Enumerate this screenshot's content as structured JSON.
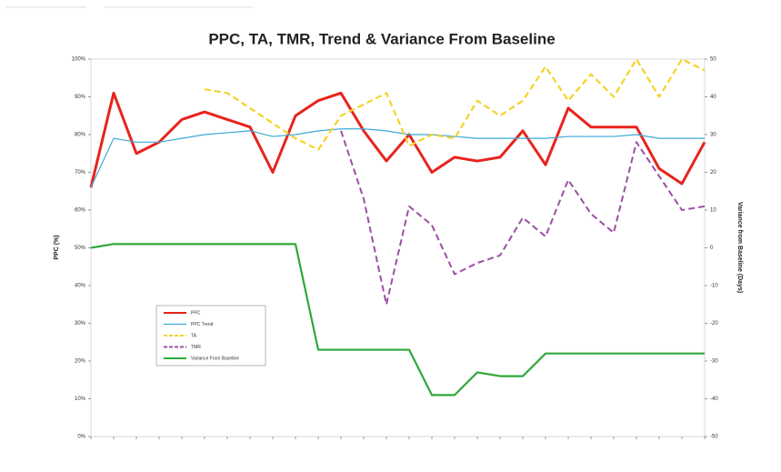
{
  "chart_data": {
    "type": "line",
    "title": "PPC, TA, TMR, Trend & Variance From Baseline",
    "y_label": "PPC (%)",
    "y2_label": "Variance from Baseline (Days)",
    "categories": [
      null,
      null,
      null,
      null,
      null,
      null,
      null,
      null,
      null,
      null,
      null,
      null,
      null,
      null,
      null,
      null,
      null,
      null,
      null,
      null,
      null,
      null,
      null,
      null,
      null,
      null,
      null,
      null
    ],
    "ylim": [
      0,
      100
    ],
    "yticks": [
      {
        "value": 0,
        "label": "0%"
      },
      {
        "value": 10,
        "label": "10%"
      },
      {
        "value": 20,
        "label": "20%"
      },
      {
        "value": 30,
        "label": "30%"
      },
      {
        "value": 40,
        "label": "40%"
      },
      {
        "value": 50,
        "label": "50%"
      },
      {
        "value": 60,
        "label": "60%"
      },
      {
        "value": 70,
        "label": "70%"
      },
      {
        "value": 80,
        "label": "80%"
      },
      {
        "value": 90,
        "label": "90%"
      },
      {
        "value": 100,
        "label": "100%"
      }
    ],
    "y2lim": [
      -50,
      50
    ],
    "y2ticks": [
      -50,
      -40,
      -30,
      -20,
      -10,
      0,
      10,
      20,
      30,
      40,
      50
    ],
    "series": [
      {
        "name": "PPC",
        "color": "#e8231d",
        "width": 3,
        "dash": false,
        "values": [
          66,
          91,
          75,
          78,
          84,
          86,
          84,
          82,
          70,
          85,
          89,
          91,
          81,
          73,
          80,
          70,
          74,
          73,
          74,
          81,
          72,
          87,
          82,
          82,
          82,
          71,
          67,
          78
        ]
      },
      {
        "name": "PPC Trend",
        "color": "#3fa9d6",
        "width": 1.2,
        "dash": false,
        "values": [
          66,
          79,
          78,
          78,
          79,
          80,
          80.5,
          81,
          79.5,
          80,
          81,
          81.5,
          81.5,
          81,
          80,
          80,
          79.5,
          79,
          79,
          79,
          79,
          79.5,
          79.5,
          79.5,
          80,
          79,
          79,
          79
        ]
      },
      {
        "name": "TA",
        "color": "#f5d327",
        "width": 2.2,
        "dash": true,
        "values": [
          null,
          null,
          null,
          null,
          null,
          92,
          91,
          87,
          83,
          79,
          76,
          85,
          88,
          91,
          77,
          80,
          79,
          89,
          85,
          89,
          98,
          89,
          96,
          90,
          100,
          90,
          100,
          97
        ]
      },
      {
        "name": "TMR",
        "color": "#9b4fa3",
        "width": 2,
        "dash": true,
        "values": [
          null,
          null,
          null,
          null,
          null,
          null,
          null,
          null,
          null,
          null,
          null,
          81,
          63,
          35,
          61,
          56,
          43,
          46,
          48,
          58,
          53,
          68,
          59,
          54,
          78,
          69,
          60,
          61
        ]
      },
      {
        "name": "Variance From Baseline",
        "color": "#2ea93a",
        "width": 2.2,
        "dash": false,
        "axis": "y2",
        "values": [
          0,
          1,
          1,
          1,
          1,
          1,
          1,
          1,
          1,
          1,
          -27,
          -27,
          -27,
          -27,
          -27,
          -39,
          -39,
          -33,
          -34,
          -34,
          -28,
          -28,
          -28,
          -28,
          -28,
          -28,
          -28,
          -28
        ]
      }
    ]
  }
}
